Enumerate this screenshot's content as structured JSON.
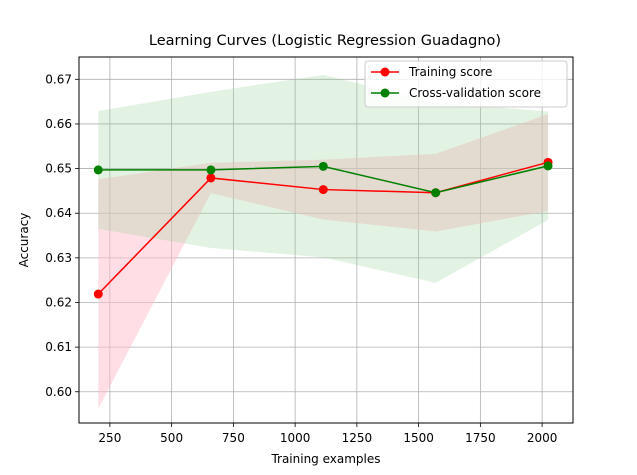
{
  "chart_data": {
    "type": "line",
    "title": "Learning Curves (Logistic Regression Guadagno)",
    "xlabel": "Training examples",
    "ylabel": "Accuracy",
    "xlim": [
      125,
      2125
    ],
    "ylim": [
      0.593,
      0.675
    ],
    "xticks": [
      250,
      500,
      750,
      1000,
      1250,
      1500,
      1750,
      2000
    ],
    "yticks": [
      0.6,
      0.61,
      0.62,
      0.63,
      0.64,
      0.65,
      0.66,
      0.67
    ],
    "grid": true,
    "legend_position": "top-right",
    "x": [
      203,
      659,
      1114,
      1569,
      2024
    ],
    "series": [
      {
        "name": "Training score",
        "color": "#ff0000",
        "band_color": "#ffc0cb",
        "values": [
          0.6219,
          0.6479,
          0.6453,
          0.6446,
          0.6514
        ],
        "lower": [
          0.5962,
          0.6445,
          0.6386,
          0.6359,
          0.6405
        ],
        "upper": [
          0.6476,
          0.6513,
          0.652,
          0.6533,
          0.6622
        ]
      },
      {
        "name": "Cross-validation score",
        "color": "#008000",
        "band_color": "#8fce8f",
        "values": [
          0.6497,
          0.6497,
          0.6505,
          0.6446,
          0.6506
        ],
        "lower": [
          0.6365,
          0.6322,
          0.6301,
          0.6244,
          0.6385
        ],
        "upper": [
          0.6629,
          0.6672,
          0.671,
          0.6648,
          0.6628
        ]
      }
    ]
  }
}
